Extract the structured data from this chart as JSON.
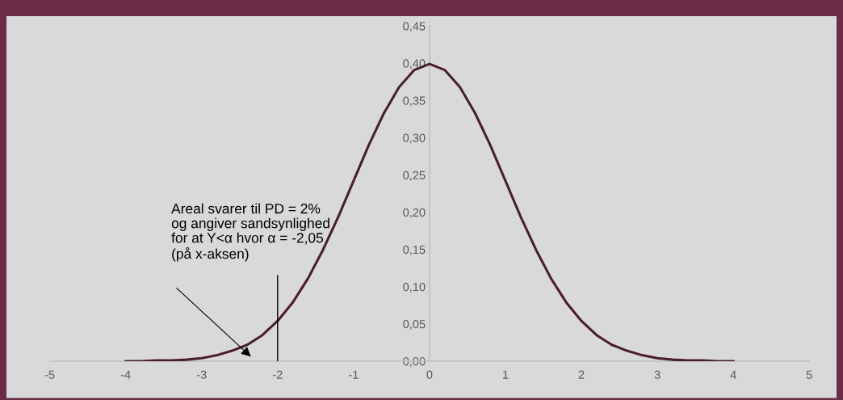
{
  "chart_data": {
    "type": "line",
    "x": [
      -4,
      -3.8,
      -3.6,
      -3.4,
      -3.2,
      -3,
      -2.8,
      -2.6,
      -2.4,
      -2.2,
      -2,
      -1.8,
      -1.6,
      -1.4,
      -1.2,
      -1,
      -0.8,
      -0.6,
      -0.4,
      -0.2,
      0,
      0.2,
      0.4,
      0.6,
      0.8,
      1,
      1.2,
      1.4,
      1.6,
      1.8,
      2,
      2.2,
      2.4,
      2.6,
      2.8,
      3,
      3.2,
      3.4,
      3.6,
      3.8,
      4
    ],
    "series": [
      {
        "color": "#4a1e2f",
        "values": [
          0.0,
          0.0,
          0.001,
          0.001,
          0.002,
          0.004,
          0.008,
          0.014,
          0.022,
          0.035,
          0.054,
          0.079,
          0.111,
          0.15,
          0.194,
          0.242,
          0.29,
          0.333,
          0.368,
          0.391,
          0.399,
          0.391,
          0.368,
          0.333,
          0.29,
          0.242,
          0.194,
          0.15,
          0.111,
          0.079,
          0.054,
          0.035,
          0.022,
          0.014,
          0.008,
          0.004,
          0.002,
          0.001,
          0.001,
          0.0,
          0.0
        ]
      },
      {
        "type": "line",
        "color": "#000000",
        "x": [
          -2,
          -2
        ],
        "values": [
          0,
          0.115
        ]
      }
    ],
    "xlim": [
      -5,
      5
    ],
    "xticks": [
      -5,
      -4,
      -3,
      -2,
      -1,
      0,
      1,
      2,
      3,
      4,
      5
    ],
    "ylim": [
      0,
      0.45
    ],
    "yticks": [
      {
        "value": 0,
        "label": "0,00"
      },
      {
        "value": 0.05,
        "label": "0,05"
      },
      {
        "value": 0.1,
        "label": "0,10"
      },
      {
        "value": 0.15,
        "label": "0,15"
      },
      {
        "value": 0.2,
        "label": "0,20"
      },
      {
        "value": 0.25,
        "label": "0,25"
      },
      {
        "value": 0.3,
        "label": "0,30"
      },
      {
        "value": 0.35,
        "label": "0,35"
      },
      {
        "value": 0.4,
        "label": "0,40"
      },
      {
        "value": 0.45,
        "label": "0,45"
      }
    ],
    "grid": false,
    "marker": "none",
    "line_style": "solid",
    "annotations": [
      "Areal svarer til PD = 2%\nog angiver sandsynlighed\nfor at Y<α hvor α = -2,05\n(på x-aksen)"
    ]
  }
}
